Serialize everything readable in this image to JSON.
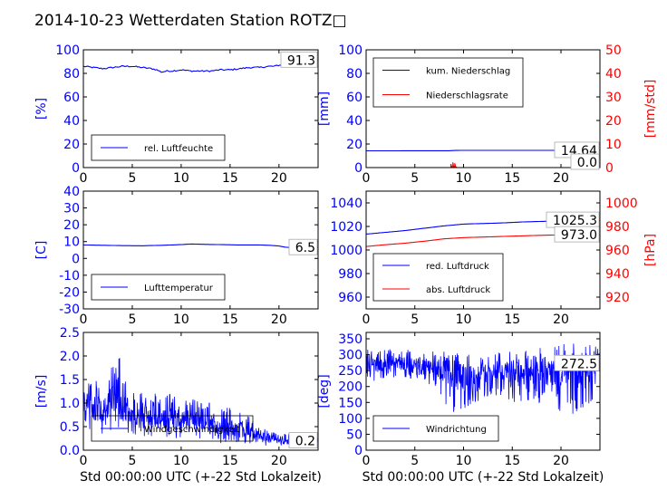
{
  "figure": {
    "title": "2014-10-23 Wetterdaten Station ROTZ□"
  },
  "colors": {
    "primary": "#0000ff",
    "secondary": "#ff0000",
    "frame": "#000000"
  },
  "chart_data": [
    {
      "type": "line",
      "ylabel": "[%]",
      "xlim": [
        0,
        24
      ],
      "ylim": [
        0,
        100
      ],
      "xticks": [
        0,
        5,
        10,
        15,
        20
      ],
      "yticks": [
        0,
        20,
        40,
        60,
        80,
        100
      ],
      "legend": "lower-left",
      "series": [
        {
          "name": "rel. Luftfeuchte",
          "color": "#0000ff",
          "x": [
            0,
            1,
            2,
            3,
            4,
            5,
            6,
            7,
            7.5,
            8,
            8.5,
            9,
            10,
            11,
            12,
            13,
            14,
            15,
            16,
            17,
            18,
            19,
            19.5,
            20,
            20.5,
            21,
            21.5,
            22,
            22.5,
            23,
            24
          ],
          "y": [
            86,
            85,
            84,
            85,
            86,
            86,
            85,
            84,
            83,
            81,
            82,
            82,
            83,
            82,
            82,
            82,
            83,
            83,
            84,
            85,
            85,
            86,
            86,
            87,
            87,
            88,
            89,
            89,
            90,
            91,
            91.3
          ]
        }
      ],
      "annotations": [
        {
          "text": "91.3",
          "x": 24,
          "y": 91.3
        }
      ]
    },
    {
      "type": "line",
      "ylabel": "[mm]",
      "ylabel2": "[mm/std]",
      "xlim": [
        0,
        24
      ],
      "ylim": [
        0,
        100
      ],
      "ylim2": [
        0,
        50
      ],
      "xticks": [
        0,
        5,
        10,
        15,
        20
      ],
      "yticks": [
        0,
        20,
        40,
        60,
        80,
        100
      ],
      "yticks2": [
        0,
        10,
        20,
        30,
        40,
        50
      ],
      "legend": "upper-left",
      "series": [
        {
          "name": "kum. Niederschlag",
          "color": "#0000ff",
          "axis": "left",
          "x": [
            0,
            5,
            8.5,
            9,
            10,
            15,
            20,
            24
          ],
          "y": [
            14.2,
            14.3,
            14.3,
            14.5,
            14.64,
            14.64,
            14.64,
            14.64
          ]
        },
        {
          "name": "Niederschlagsrate",
          "color": "#ff0000",
          "axis": "right",
          "x": [
            0,
            8.6,
            8.7,
            8.8,
            8.9,
            9.0,
            9.1,
            9.2,
            9.3,
            24
          ],
          "y": [
            0,
            0,
            1.5,
            0.5,
            2.2,
            0.6,
            1.8,
            0.3,
            0,
            0
          ]
        }
      ],
      "annotations": [
        {
          "text": "14.64",
          "x": 24,
          "y": 14.64
        },
        {
          "text": "0.0",
          "x": 24,
          "y": 0
        }
      ]
    },
    {
      "type": "line",
      "ylabel": "[C]",
      "xlim": [
        0,
        24
      ],
      "ylim": [
        -30,
        40
      ],
      "xticks": [
        0,
        5,
        10,
        15,
        20
      ],
      "yticks": [
        -30,
        -20,
        -10,
        0,
        10,
        20,
        30,
        40
      ],
      "legend": "lower-left",
      "series": [
        {
          "name": "Lufttemperatur",
          "color": "#0000ff",
          "x": [
            0,
            2,
            4,
            6,
            8,
            10,
            11,
            12,
            14,
            16,
            18,
            19,
            20,
            20.5,
            21,
            22,
            23,
            24
          ],
          "y": [
            8.0,
            7.8,
            7.6,
            7.5,
            7.8,
            8.2,
            8.6,
            8.4,
            8.2,
            8.0,
            8.0,
            7.8,
            7.4,
            6.8,
            6.5,
            6.4,
            6.5,
            6.5
          ]
        }
      ],
      "annotations": [
        {
          "text": "6.5",
          "x": 24,
          "y": 6.5
        }
      ]
    },
    {
      "type": "line",
      "ylabel2": "[hPa]",
      "xlim": [
        0,
        24
      ],
      "ylim": [
        950,
        1050
      ],
      "ylim2": [
        910,
        1010
      ],
      "xticks": [
        0,
        5,
        10,
        15,
        20
      ],
      "yticks": [
        960,
        980,
        1000,
        1020,
        1040
      ],
      "yticks2": [
        920,
        940,
        960,
        980,
        1000
      ],
      "legend": "lower-left",
      "series": [
        {
          "name": "red. Luftdruck",
          "color": "#0000ff",
          "axis": "left",
          "x": [
            0,
            2,
            4,
            6,
            8,
            10,
            12,
            14,
            16,
            18,
            20,
            22,
            24
          ],
          "y": [
            1013.5,
            1015.0,
            1016.5,
            1018.5,
            1020.5,
            1022.0,
            1022.5,
            1023.0,
            1023.8,
            1024.3,
            1024.8,
            1025.1,
            1025.3
          ]
        },
        {
          "name": "abs. Luftdruck",
          "color": "#ff0000",
          "axis": "right",
          "x": [
            0,
            2,
            4,
            6,
            8,
            10,
            12,
            14,
            16,
            18,
            20,
            22,
            24
          ],
          "y": [
            963,
            964.5,
            965.8,
            967.5,
            969.5,
            970.5,
            971.0,
            971.5,
            972.0,
            972.5,
            972.8,
            973.0,
            973.0
          ]
        }
      ],
      "annotations": [
        {
          "text": "1025.3",
          "x": 24,
          "y": 1025.3
        },
        {
          "text": "973.0",
          "x": 24,
          "y": 973.0
        }
      ]
    },
    {
      "type": "line",
      "ylabel": "[m/s]",
      "xlabel": "Std 00:00:00 UTC (+-22 Std Lokalzeit)",
      "xlim": [
        0,
        24
      ],
      "ylim": [
        0,
        2.5
      ],
      "xticks": [
        0,
        5,
        10,
        15,
        20
      ],
      "yticks": [
        0,
        0.5,
        1.0,
        1.5,
        2.0,
        2.5
      ],
      "legend": "lower-center",
      "series": [
        {
          "name": "Windgeschwindigkeit",
          "color": "#0000ff",
          "x": [
            0,
            1,
            2,
            3,
            3.5,
            4,
            5,
            6,
            7,
            8,
            9,
            10,
            11,
            12,
            13,
            14,
            15,
            16,
            17,
            18,
            19,
            20,
            21,
            22,
            23,
            24
          ],
          "y": [
            1.0,
            0.9,
            0.85,
            1.0,
            1.2,
            0.9,
            0.8,
            0.7,
            0.75,
            0.65,
            0.7,
            0.6,
            0.65,
            0.6,
            0.55,
            0.5,
            0.5,
            0.45,
            0.4,
            0.3,
            0.25,
            0.2,
            0.2,
            0.15,
            0.2,
            0.2
          ],
          "envelope_low": [
            0.5,
            0.4,
            0.35,
            0.45,
            0.5,
            0.4,
            0.35,
            0.3,
            0.3,
            0.25,
            0.3,
            0.2,
            0.25,
            0.2,
            0.2,
            0.15,
            0.2,
            0.15,
            0.15,
            0.1,
            0.1,
            0.1,
            0.1,
            0.1,
            0.1,
            0.1
          ],
          "envelope_high": [
            1.6,
            1.5,
            1.4,
            1.8,
            2.2,
            1.6,
            1.4,
            1.2,
            1.25,
            1.1,
            1.2,
            1.0,
            1.1,
            1.0,
            1.0,
            0.9,
            0.9,
            0.8,
            0.7,
            0.5,
            0.4,
            0.35,
            0.35,
            0.3,
            0.35,
            0.3
          ]
        }
      ],
      "annotations": [
        {
          "text": "0.2",
          "x": 24,
          "y": 0.2
        }
      ]
    },
    {
      "type": "line",
      "ylabel": "[deg]",
      "xlabel": "Std 00:00:00 UTC (+-22 Std Lokalzeit)",
      "xlim": [
        0,
        24
      ],
      "ylim": [
        0,
        370
      ],
      "xticks": [
        0,
        5,
        10,
        15,
        20
      ],
      "yticks": [
        0,
        50,
        100,
        150,
        200,
        250,
        300,
        350
      ],
      "legend": "lower-left",
      "series": [
        {
          "name": "Windrichtung",
          "color": "#0000ff",
          "x": [
            0,
            1,
            2,
            3,
            4,
            5,
            6,
            7,
            8,
            9,
            10,
            11,
            12,
            13,
            14,
            15,
            16,
            17,
            18,
            19,
            20,
            21,
            22,
            23,
            24
          ],
          "y": [
            270,
            265,
            270,
            275,
            270,
            268,
            265,
            262,
            255,
            240,
            230,
            235,
            240,
            245,
            240,
            245,
            250,
            255,
            250,
            245,
            240,
            250,
            255,
            265,
            272.5
          ],
          "envelope_low": [
            200,
            210,
            225,
            230,
            230,
            215,
            210,
            200,
            150,
            120,
            130,
            150,
            160,
            175,
            165,
            150,
            155,
            150,
            145,
            150,
            120,
            110,
            130,
            150,
            200
          ],
          "envelope_high": [
            320,
            310,
            315,
            320,
            315,
            315,
            310,
            310,
            310,
            300,
            310,
            310,
            300,
            300,
            310,
            315,
            310,
            325,
            320,
            325,
            330,
            340,
            335,
            330,
            330
          ]
        }
      ],
      "annotations": [
        {
          "text": "272.5",
          "x": 24,
          "y": 272.5
        }
      ]
    }
  ]
}
